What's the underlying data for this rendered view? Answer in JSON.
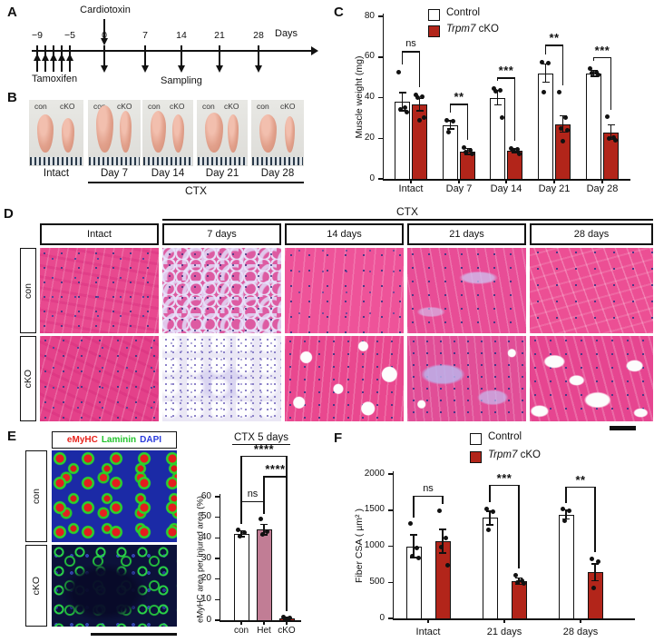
{
  "panels": {
    "A": {
      "label": "A",
      "cardiotoxin": "Cardiotoxin",
      "tamoxifen": "Tamoxifen",
      "sampling": "Sampling",
      "days": "Days",
      "ticks": [
        "−9",
        "−5",
        "0",
        "7",
        "14",
        "21",
        "28"
      ]
    },
    "B": {
      "label": "B",
      "group_labels": [
        "con",
        "cKO"
      ],
      "timepoints": [
        "Intact",
        "Day 7",
        "Day 14",
        "Day 21",
        "Day 28"
      ],
      "ctx": "CTX"
    },
    "C": {
      "label": "C",
      "legend": {
        "control": "Control",
        "gene": "Trpm7",
        "suffix": " cKO"
      }
    },
    "D": {
      "label": "D",
      "ctx": "CTX",
      "columns": [
        "Intact",
        "7 days",
        "14 days",
        "21 days",
        "28 days"
      ],
      "rows": [
        "con",
        "cKO"
      ]
    },
    "E": {
      "label": "E",
      "stains": [
        {
          "label": "eMyHC",
          "color": "#e8231c"
        },
        {
          "label": "Laminin",
          "color": "#22c42c"
        },
        {
          "label": "DAPI",
          "color": "#2b3cdd"
        }
      ],
      "rows": [
        "con",
        "cKO"
      ]
    },
    "F": {
      "label": "F",
      "legend": {
        "control": "Control",
        "gene": "Trpm7",
        "suffix": " cKO"
      }
    }
  },
  "colors": {
    "control_bar": "#ffffff",
    "cko_bar": "#b2251a",
    "het_bar": "#c17d95"
  },
  "chart_data": [
    {
      "type": "bar",
      "panel": "C",
      "ylabel": "Muscle weight (mg)",
      "ylim": [
        0,
        80
      ],
      "yticks": [
        0,
        20,
        40,
        60,
        80
      ],
      "categories": [
        "Intact",
        "Day 7",
        "Day 14",
        "Day 21",
        "Day 28"
      ],
      "series": [
        {
          "name": "Control",
          "color": "#ffffff",
          "values": [
            38,
            26.5,
            40,
            52,
            52
          ],
          "errors": [
            4.5,
            2,
            3.5,
            4.5,
            1.5
          ],
          "points": [
            [
              52.5,
              35,
              34,
              33
            ],
            [
              29,
              28.5,
              23
            ],
            [
              44.5,
              43.5,
              43,
              30
            ],
            [
              57.5,
              57,
              42.5
            ],
            [
              54.5,
              52.5,
              52,
              51
            ]
          ]
        },
        {
          "name": "Trpm7 cKO",
          "color": "#b2251a",
          "values": [
            36.5,
            13.5,
            14,
            27,
            23
          ],
          "errors": [
            3,
            1.5,
            1,
            4,
            3.5
          ],
          "points": [
            [
              41.5,
              40.5,
              40,
              30,
              29
            ],
            [
              15.5,
              14,
              13,
              12.5
            ],
            [
              15,
              14.5,
              14,
              12.5
            ],
            [
              42.5,
              30,
              25,
              24,
              18.5
            ],
            [
              30.5,
              20.5,
              20,
              19
            ]
          ]
        }
      ],
      "sig": [
        {
          "category": 0,
          "label": "ns",
          "y": 63
        },
        {
          "category": 1,
          "label": "**",
          "y": 37
        },
        {
          "category": 2,
          "label": "***",
          "y": 50
        },
        {
          "category": 3,
          "label": "**",
          "y": 66
        },
        {
          "category": 4,
          "label": "***",
          "y": 60
        }
      ],
      "legend_position": "top"
    },
    {
      "type": "bar",
      "panel": "E",
      "title": "CTX 5 days",
      "ylabel": "eMyHC area per injured area (%)",
      "ylim": [
        0,
        60
      ],
      "yticks": [
        0,
        10,
        20,
        30,
        40,
        50,
        60
      ],
      "categories": [
        "con",
        "Het",
        "cKO"
      ],
      "series": [
        {
          "name": "eMyHC area",
          "colors": [
            "#ffffff",
            "#c17d95",
            "#b2251a"
          ],
          "values": [
            42,
            44,
            1
          ],
          "errors": [
            1.5,
            2.5,
            0.5
          ],
          "points": [
            [
              44,
              42.5,
              41
            ],
            [
              49,
              43,
              41.5
            ],
            [
              1.5,
              1,
              0.8
            ]
          ]
        }
      ],
      "sig": [
        {
          "pair": [
            0,
            1
          ],
          "label": "ns",
          "y": 58
        },
        {
          "pair": [
            1,
            2
          ],
          "label": "****",
          "y": 70
        },
        {
          "pair": [
            0,
            2
          ],
          "label": "****",
          "y": 80
        }
      ]
    },
    {
      "type": "bar",
      "panel": "F",
      "ylabel": "Fiber CSA ( µm² )",
      "ylim": [
        0,
        2000
      ],
      "yticks": [
        0,
        500,
        1000,
        1500,
        2000
      ],
      "categories": [
        "Intact",
        "21 days",
        "28 days"
      ],
      "series": [
        {
          "name": "Control",
          "color": "#ffffff",
          "values": [
            1000,
            1390,
            1440
          ],
          "errors": [
            160,
            95,
            65
          ],
          "points": [
            [
              1310,
              980,
              860,
              840
            ],
            [
              1520,
              1480,
              1230
            ],
            [
              1510,
              1490,
              1350
            ]
          ]
        },
        {
          "name": "Trpm7 cKO",
          "color": "#b2251a",
          "values": [
            1070,
            515,
            640
          ],
          "errors": [
            165,
            45,
            115
          ],
          "points": [
            [
              1490,
              1110,
              990,
              740
            ],
            [
              600,
              520,
              500,
              490
            ],
            [
              830,
              780,
              420
            ]
          ]
        }
      ],
      "sig": [
        {
          "category": 0,
          "label": "ns",
          "y": 1700
        },
        {
          "category": 1,
          "label": "***",
          "y": 1850
        },
        {
          "category": 2,
          "label": "**",
          "y": 1830
        }
      ],
      "legend_position": "top"
    }
  ]
}
